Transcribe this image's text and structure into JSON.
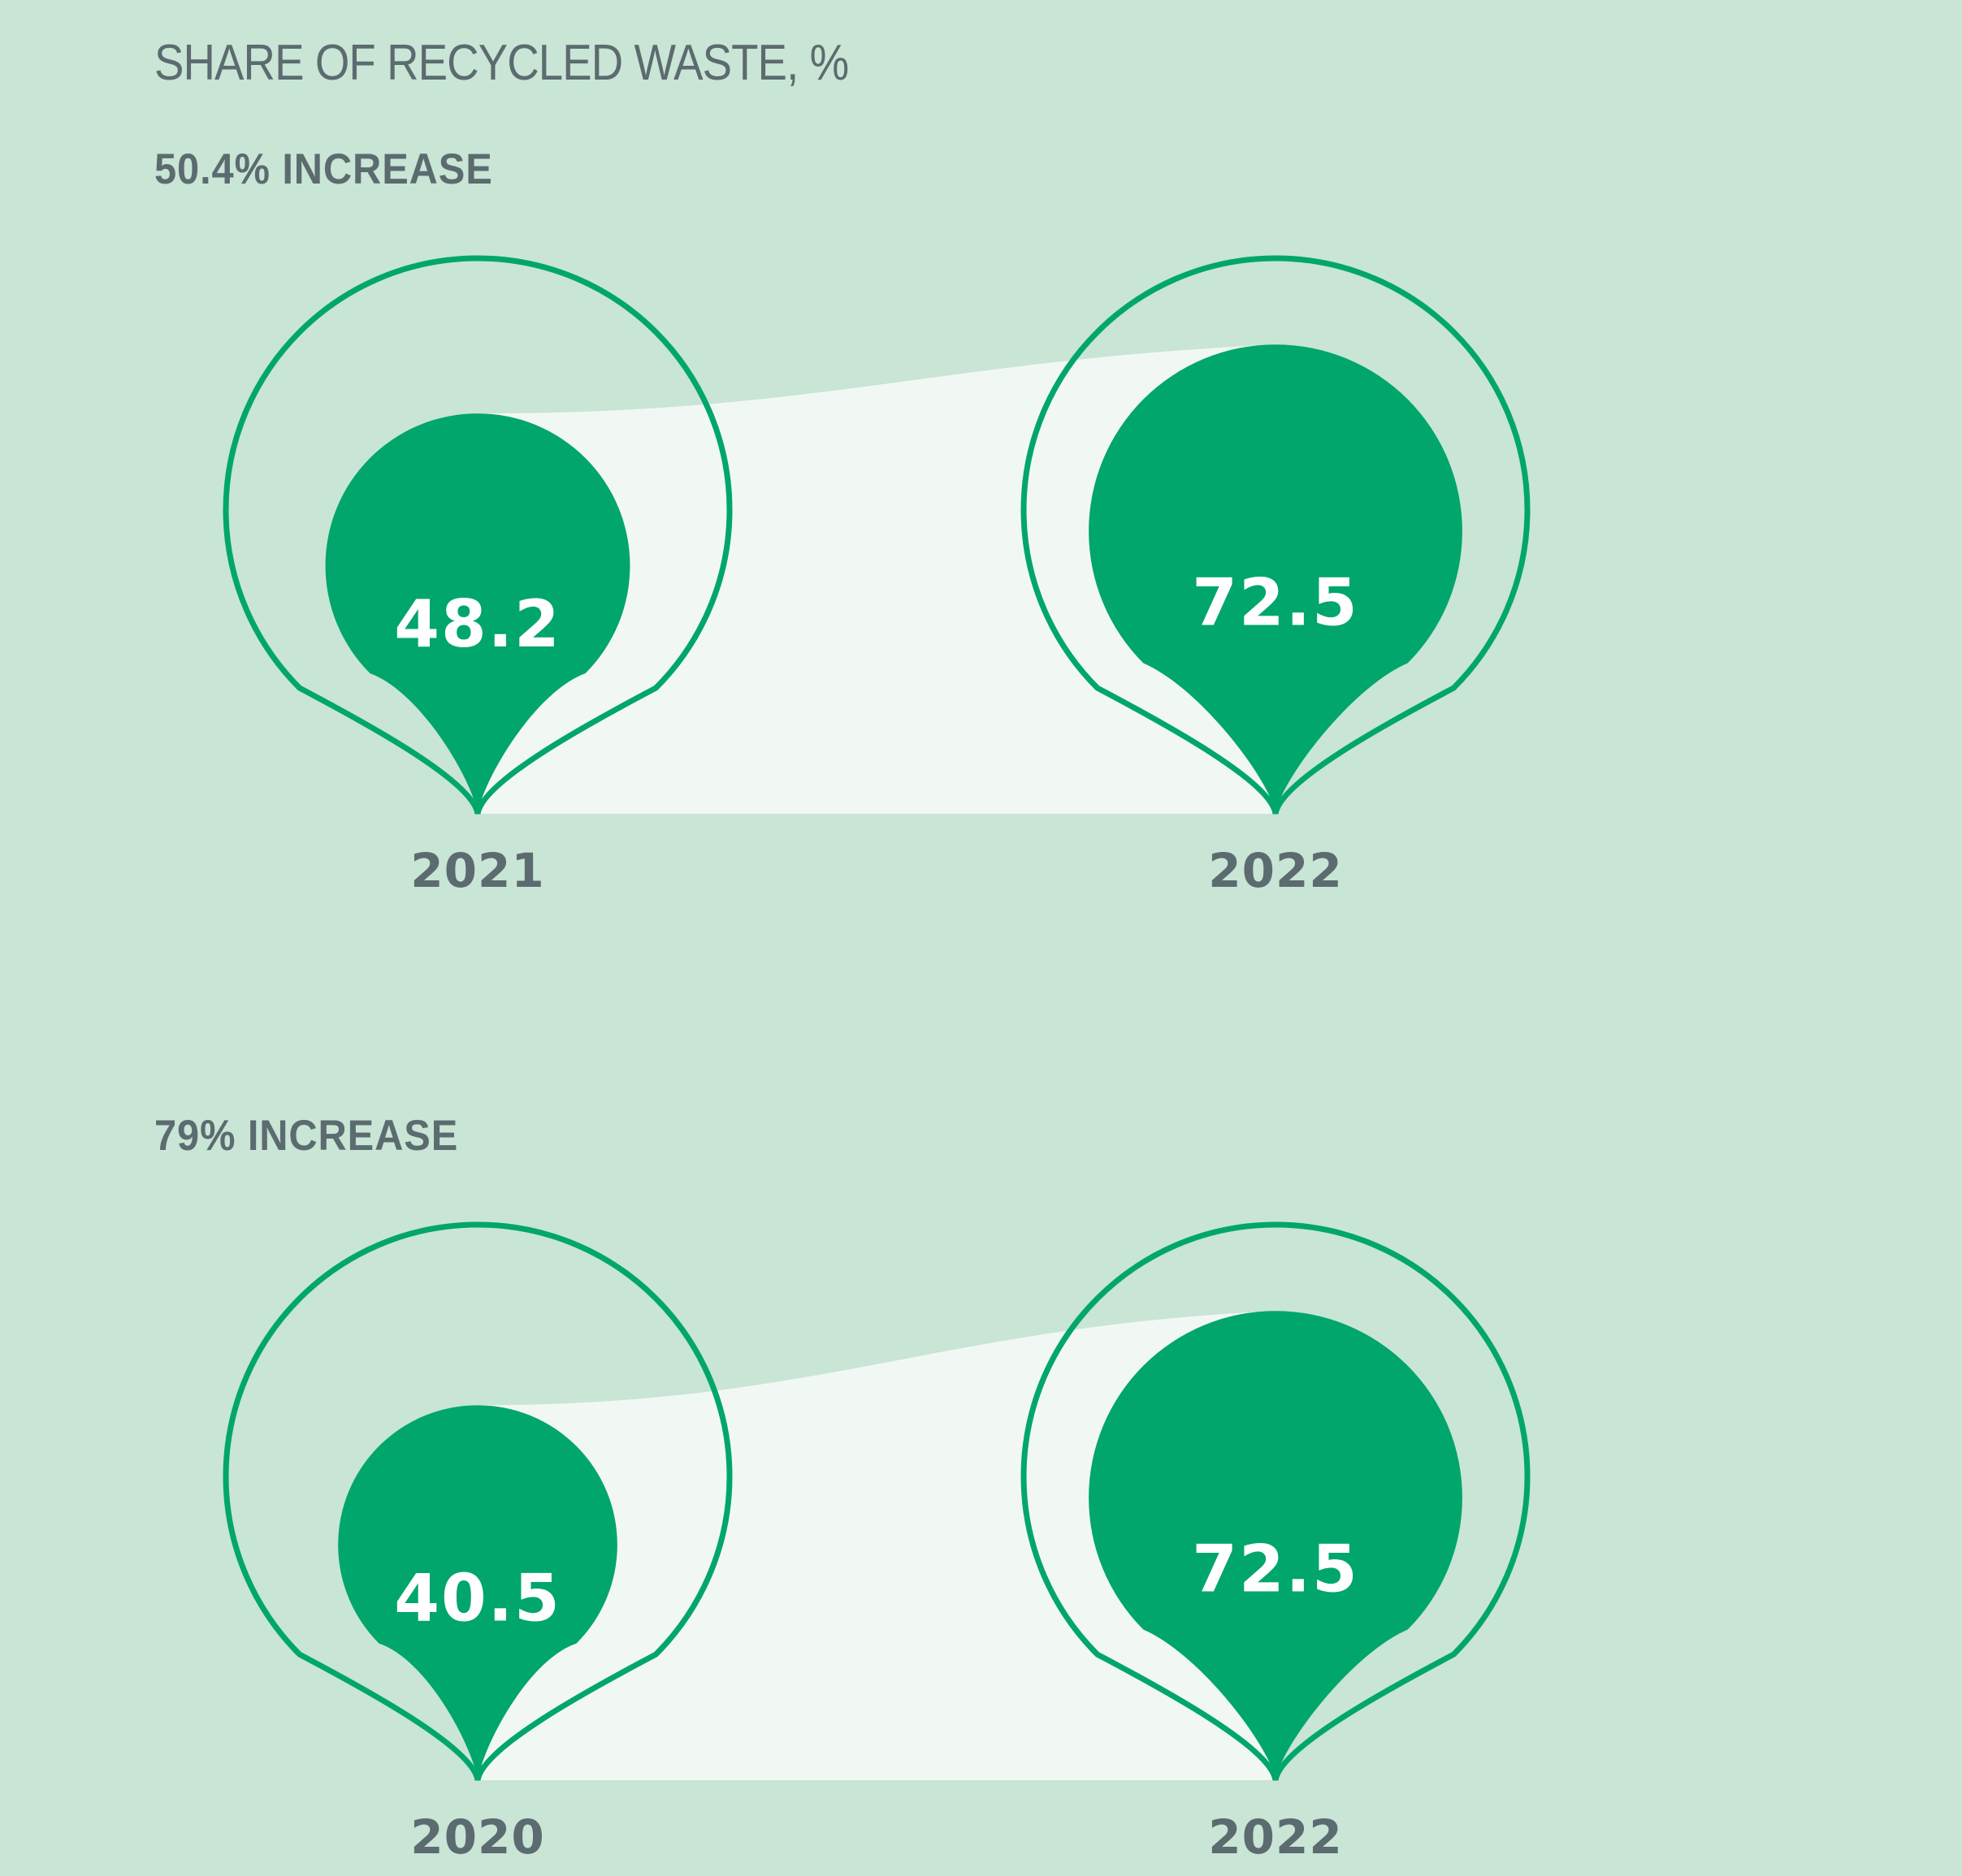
{
  "title": "SHARE OF RECYCLED WASTE, %",
  "colors": {
    "background": "#c8e5d5",
    "accent": "#00a66b",
    "band": "#f1f8f4",
    "text": "#5c6b6f"
  },
  "chart_data": [
    {
      "type": "bubble",
      "subtitle": "50.4% INCREASE",
      "max": 100,
      "points": [
        {
          "year": "2021",
          "value": 48.2,
          "label": "48.2"
        },
        {
          "year": "2022",
          "value": 72.5,
          "label": "72.5"
        }
      ]
    },
    {
      "type": "bubble",
      "subtitle": "79% INCREASE",
      "max": 100,
      "points": [
        {
          "year": "2020",
          "value": 40.5,
          "label": "40.5"
        },
        {
          "year": "2022",
          "value": 72.5,
          "label": "72.5"
        }
      ]
    }
  ]
}
